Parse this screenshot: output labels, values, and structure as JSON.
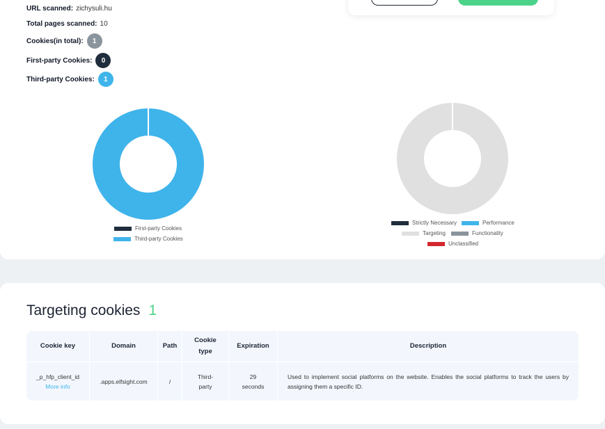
{
  "stats": {
    "url_label": "URL scanned:",
    "url_value": "zichysuli.hu",
    "pages_label": "Total pages scanned:",
    "pages_value": "10",
    "total_label": "Cookies(in total):",
    "total_value": "1",
    "first_label": "First-party Cookies:",
    "first_value": "0",
    "third_label": "Third-party Cookies:",
    "third_value": "1"
  },
  "colors": {
    "dark": "#1f2d3d",
    "blue": "#3fb4ea",
    "grey": "#8a949c",
    "light_grey": "#e0e0e0",
    "red": "#d3272e",
    "green": "#4cd38a"
  },
  "chart_data": [
    {
      "type": "pie",
      "donut": true,
      "categories": [
        "First-party Cookies",
        "Third-party Cookies"
      ],
      "values": [
        0,
        1
      ],
      "colors": [
        "#1f2d3d",
        "#3fb4ea"
      ],
      "legend": "bottom"
    },
    {
      "type": "pie",
      "donut": true,
      "categories": [
        "Strictly Necessary",
        "Performance",
        "Targeting",
        "Functionality",
        "Unclassified"
      ],
      "values": [
        0,
        0,
        1,
        0,
        0
      ],
      "colors": [
        "#1f2d3d",
        "#3fb4ea",
        "#e0e0e0",
        "#8a949c",
        "#d3272e"
      ],
      "legend": "bottom"
    }
  ],
  "section": {
    "title": "Targeting cookies",
    "count": "1"
  },
  "table": {
    "headers": {
      "key": "Cookie key",
      "domain": "Domain",
      "path": "Path",
      "type_line1": "Cookie",
      "type_line2": "type",
      "expiration": "Expiration",
      "description": "Description"
    },
    "rows": [
      {
        "key": "_p_hfp_client_id",
        "more": "More info",
        "domain": ".apps.elfsight.com",
        "path": "/",
        "type_line1": "Third-",
        "type_line2": "party",
        "exp_line1": "29",
        "exp_line2": "seconds",
        "description": "Used to implement social platforms on the website. Enables the social platforms to track the users by assigning them a specific ID."
      }
    ]
  }
}
